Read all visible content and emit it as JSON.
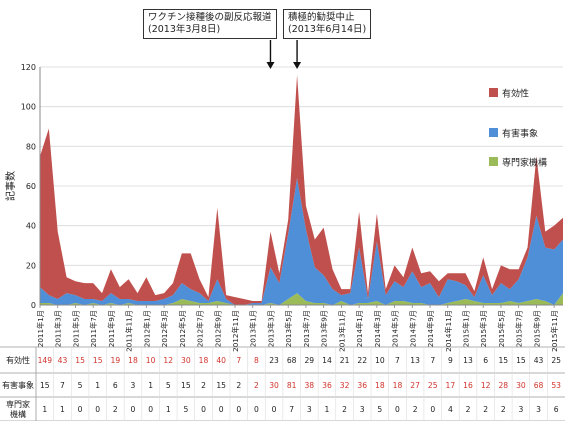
{
  "annotations": [
    {
      "line1": "ワクチン接種後の副反応報道",
      "line2": "(2013年3月8日)",
      "month_index": 26
    },
    {
      "line1": "積極的勧奨中止",
      "line2": "(2013年6月14日)",
      "month_index": 29
    }
  ],
  "chart_data": {
    "type": "area",
    "stacked": true,
    "ylabel": "記事数",
    "ylim": [
      0,
      120
    ],
    "yticks": [
      0,
      20,
      40,
      60,
      80,
      100,
      120
    ],
    "legend_position": "right",
    "x": [
      "2011年1月",
      "2011年2月",
      "2011年3月",
      "2011年4月",
      "2011年5月",
      "2011年6月",
      "2011年7月",
      "2011年8月",
      "2011年9月",
      "2011年10月",
      "2011年11月",
      "2011年12月",
      "2012年1月",
      "2012年2月",
      "2012年3月",
      "2012年4月",
      "2012年5月",
      "2012年6月",
      "2012年7月",
      "2012年8月",
      "2012年9月",
      "2012年10月",
      "2012年11月",
      "2012年12月",
      "2013年1月",
      "2013年2月",
      "2013年3月",
      "2013年4月",
      "2013年5月",
      "2013年6月",
      "2013年7月",
      "2013年8月",
      "2013年9月",
      "2013年10月",
      "2013年11月",
      "2013年12月",
      "2014年1月",
      "2014年2月",
      "2014年3月",
      "2014年4月",
      "2014年5月",
      "2014年6月",
      "2014年7月",
      "2014年8月",
      "2014年9月",
      "2014年10月",
      "2014年11月",
      "2014年12月",
      "2015年1月",
      "2015年2月",
      "2015年3月",
      "2015年4月",
      "2015年5月",
      "2015年6月",
      "2015年7月",
      "2015年8月",
      "2015年9月",
      "2015年10月",
      "2015年11月",
      "2015年12月"
    ],
    "xtick_labels": [
      "2011年1月",
      "2011年3月",
      "2011年5月",
      "2011年7月",
      "2011年9月",
      "2011年11月",
      "2012年1月",
      "2012年3月",
      "2012年5月",
      "2012年7月",
      "2012年9月",
      "2012年11月",
      "2013年1月",
      "2013年3月",
      "2013年5月",
      "2013年7月",
      "2013年9月",
      "2013年11月",
      "2014年1月",
      "2014年3月",
      "2014年5月",
      "2014年7月",
      "2014年9月",
      "2014年11月",
      "2015年1月",
      "2015年3月",
      "2015年5月",
      "2015年7月",
      "2015年9月",
      "2015年11月"
    ],
    "series": [
      {
        "name": "専門家機構",
        "color": "#9bbb59",
        "values": [
          1,
          1,
          0,
          0,
          1,
          0,
          1,
          0,
          1,
          0,
          1,
          0,
          0,
          0,
          0,
          1,
          3,
          2,
          1,
          1,
          2,
          1,
          0,
          0,
          0,
          0,
          1,
          0,
          3,
          6,
          2,
          1,
          1,
          0,
          2,
          0,
          1,
          1,
          2,
          0,
          2,
          2,
          1,
          1,
          0,
          0,
          1,
          2,
          3,
          2,
          1,
          1,
          1,
          2,
          1,
          2,
          3,
          2,
          0,
          6
        ]
      },
      {
        "name": "有害事象",
        "color": "#4f8fd8",
        "values": [
          8,
          4,
          3,
          6,
          4,
          3,
          2,
          2,
          5,
          3,
          2,
          2,
          2,
          2,
          3,
          4,
          8,
          6,
          5,
          1,
          11,
          2,
          0,
          0,
          1,
          1,
          18,
          11,
          33,
          58,
          36,
          18,
          14,
          8,
          3,
          6,
          28,
          2,
          30,
          5,
          10,
          7,
          16,
          8,
          11,
          4,
          12,
          10,
          7,
          2,
          14,
          4,
          10,
          6,
          12,
          22,
          42,
          27,
          28,
          27
        ]
      },
      {
        "name": "有効性",
        "color": "#c0504d",
        "values": [
          66,
          84,
          34,
          8,
          7,
          8,
          8,
          4,
          12,
          6,
          10,
          4,
          12,
          3,
          3,
          6,
          15,
          18,
          7,
          2,
          36,
          2,
          4,
          3,
          1,
          1,
          18,
          5,
          7,
          52,
          12,
          14,
          24,
          10,
          3,
          2,
          18,
          3,
          14,
          3,
          8,
          5,
          12,
          7,
          6,
          8,
          3,
          4,
          6,
          3,
          9,
          3,
          9,
          10,
          5,
          5,
          30,
          8,
          12,
          11
        ]
      }
    ]
  },
  "table": {
    "rows": [
      {
        "label": "有効性",
        "values": [
          "149",
          "43",
          "15",
          "15",
          "19",
          "18",
          "10",
          "12",
          "30",
          "18",
          "40",
          "7",
          "8",
          "23",
          "68",
          "29",
          "14",
          "21",
          "22",
          "10",
          "7",
          "13",
          "7",
          "9",
          "13",
          "6",
          "15",
          "15",
          "43",
          "25"
        ],
        "colors": [
          "r",
          "r",
          "r",
          "r",
          "r",
          "r",
          "r",
          "r",
          "r",
          "r",
          "r",
          "r",
          "r",
          "k",
          "k",
          "k",
          "k",
          "k",
          "k",
          "k",
          "k",
          "k",
          "k",
          "k",
          "k",
          "k",
          "k",
          "k",
          "k",
          "k"
        ]
      },
      {
        "label": "有害事象",
        "values": [
          "15",
          "7",
          "5",
          "1",
          "6",
          "3",
          "1",
          "5",
          "15",
          "2",
          "15",
          "2",
          "2",
          "30",
          "81",
          "38",
          "36",
          "32",
          "36",
          "18",
          "18",
          "27",
          "25",
          "17",
          "16",
          "12",
          "28",
          "30",
          "68",
          "53"
        ],
        "colors": [
          "k",
          "k",
          "k",
          "k",
          "k",
          "k",
          "k",
          "k",
          "k",
          "k",
          "k",
          "k",
          "r",
          "r",
          "r",
          "r",
          "r",
          "r",
          "r",
          "r",
          "r",
          "r",
          "r",
          "r",
          "r",
          "r",
          "r",
          "r",
          "r",
          "r"
        ]
      },
      {
        "label": "専門家\n機構",
        "values": [
          "1",
          "1",
          "0",
          "0",
          "2",
          "0",
          "0",
          "1",
          "5",
          "0",
          "0",
          "0",
          "0",
          "0",
          "7",
          "3",
          "1",
          "2",
          "3",
          "5",
          "0",
          "2",
          "0",
          "4",
          "2",
          "2",
          "2",
          "3",
          "3",
          "6"
        ],
        "colors": [
          "k",
          "k",
          "k",
          "k",
          "k",
          "k",
          "k",
          "k",
          "k",
          "k",
          "k",
          "k",
          "k",
          "k",
          "k",
          "k",
          "k",
          "k",
          "k",
          "k",
          "k",
          "k",
          "k",
          "k",
          "k",
          "k",
          "k",
          "k",
          "k",
          "k"
        ]
      }
    ],
    "red_color": "#d0342c",
    "black_color": "#222222"
  }
}
